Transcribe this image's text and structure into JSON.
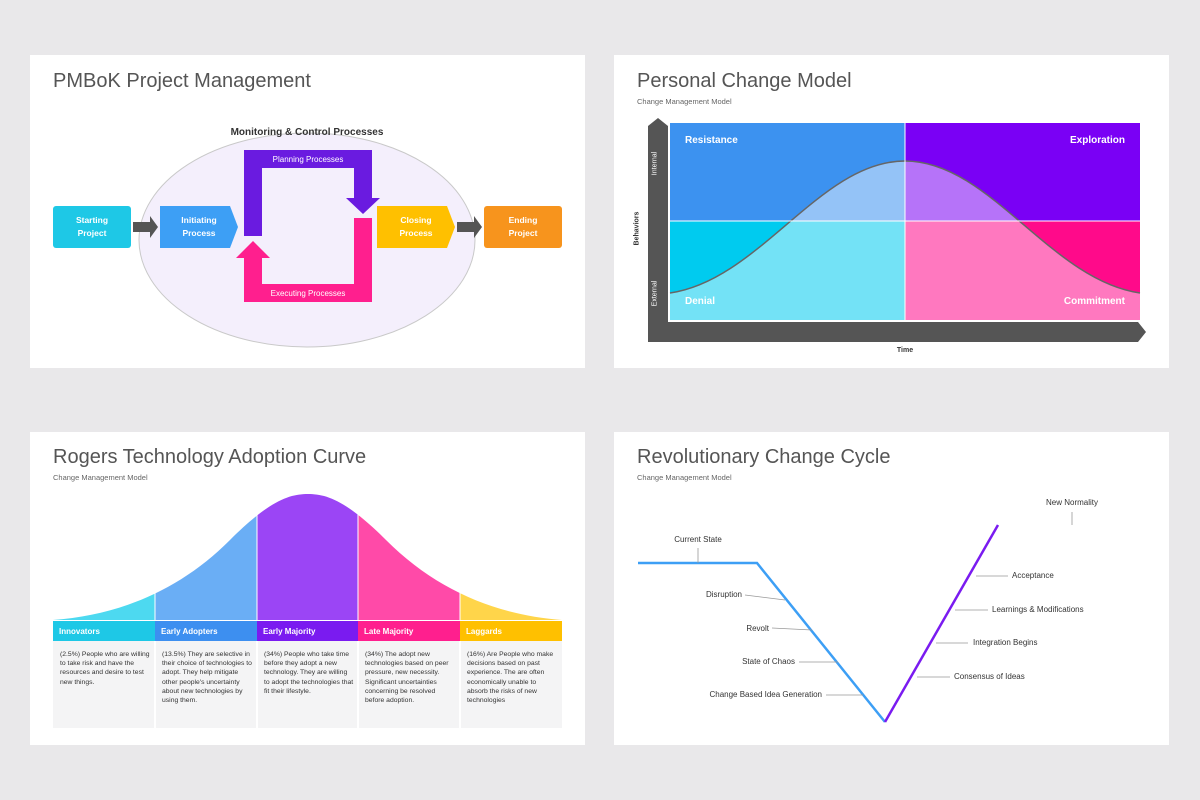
{
  "slides": [
    {
      "title": "PMBoK Project Management",
      "group": "Monitoring & Control Processes",
      "nodes": [
        "Starting Project",
        "Initiating Process",
        "Closing Process",
        "Ending Project"
      ],
      "loop": [
        "Planning Processes",
        "Executing Processes"
      ]
    },
    {
      "title": "Personal Change Model",
      "subtitle": "Change Management Model",
      "quadrants": [
        "Resistance",
        "Exploration",
        "Denial",
        "Commitment"
      ],
      "y_axis": "Behaviors",
      "y_labels": [
        "Internal",
        "External"
      ],
      "x_axis": "Time"
    },
    {
      "title": "Rogers Technology Adoption Curve",
      "subtitle": "Change Management Model",
      "segments": [
        {
          "name": "Innovators",
          "text": "(2.5%) People who are willing to take risk and have the resources and desire to test new things."
        },
        {
          "name": "Early Adopters",
          "text": "(13.5%) They are selective in their choice of technologies to adopt. They help mitigate other people's uncertainty about new technologies by using them."
        },
        {
          "name": "Early Majority",
          "text": "(34%) People who take time before they adopt a new technology. They are willing to adopt the technologies that fit their lifestyle."
        },
        {
          "name": "Late Majority",
          "text": "(34%) The adopt new technologies based on peer pressure, new necessity. Significant uncertainties concerning be resolved before adoption."
        },
        {
          "name": "Laggards",
          "text": "(16%) Are People who make decisions based on past experience. The are often economically unable to absorb the risks of new technologies"
        }
      ]
    },
    {
      "title": "Revolutionary Change Cycle",
      "subtitle": "Change Management Model",
      "left_labels": [
        "Current State",
        "Disruption",
        "Revolt",
        "State of Chaos",
        "Change Based Idea Generation"
      ],
      "right_labels": [
        "New Normality",
        "Acceptance",
        "Learnings & Modifications",
        "Integration Begins",
        "Consensus of Ideas"
      ]
    }
  ]
}
